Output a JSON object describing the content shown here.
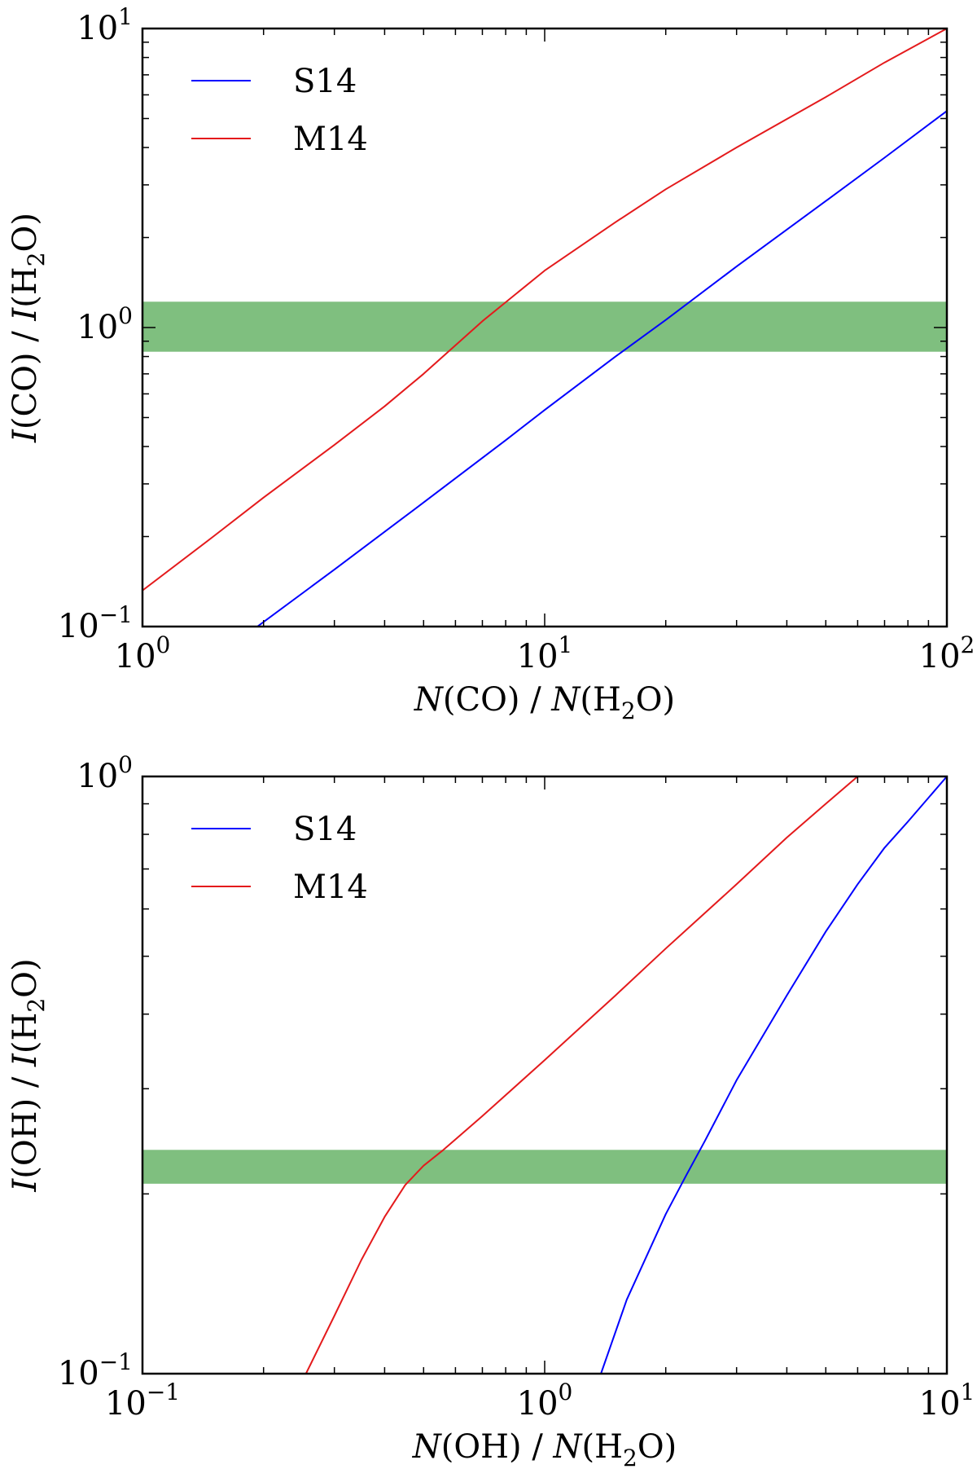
{
  "colors": {
    "S14": "#0000ff",
    "M14": "#e41a1c",
    "band": "#7fbf7f",
    "axes": "#000000"
  },
  "chart_data": [
    {
      "type": "line",
      "xscale": "log",
      "yscale": "log",
      "xlim": [
        1,
        100
      ],
      "ylim": [
        0.1,
        10
      ],
      "xlabel": {
        "pre": "N",
        "mid1": "(CO) / ",
        "italic2": "N",
        "mid2": "(H",
        "sub": "2",
        "post": "O)"
      },
      "ylabel": {
        "pre": "I",
        "mid1": "(CO) / ",
        "italic2": "I",
        "mid2": "(H",
        "sub": "2",
        "post": "O)"
      },
      "xticks": [
        {
          "value": 1,
          "base": "10",
          "exp": "0"
        },
        {
          "value": 10,
          "base": "10",
          "exp": "1"
        },
        {
          "value": 100,
          "base": "10",
          "exp": "2"
        }
      ],
      "yticks": [
        {
          "value": 0.1,
          "base": "10",
          "exp": "−1"
        },
        {
          "value": 1,
          "base": "10",
          "exp": "0"
        },
        {
          "value": 10,
          "base": "10",
          "exp": "1"
        }
      ],
      "band": {
        "y0": 0.83,
        "y1": 1.22
      },
      "legend": {
        "position": "upper-left",
        "entries": [
          "S14",
          "M14"
        ]
      },
      "series": [
        {
          "name": "S14",
          "x": [
            1.93,
            3,
            5,
            8,
            10,
            15,
            20,
            30,
            50,
            70,
            100
          ],
          "y": [
            0.1,
            0.155,
            0.26,
            0.42,
            0.53,
            0.8,
            1.06,
            1.6,
            2.65,
            3.7,
            5.3
          ]
        },
        {
          "name": "M14",
          "x": [
            1,
            1.5,
            2,
            3,
            4,
            5,
            7,
            10,
            15,
            20,
            30,
            50,
            70,
            100
          ],
          "y": [
            0.132,
            0.2,
            0.27,
            0.405,
            0.545,
            0.7,
            1.05,
            1.55,
            2.25,
            2.9,
            4.0,
            5.9,
            7.7,
            10.0
          ]
        }
      ]
    },
    {
      "type": "line",
      "xscale": "log",
      "yscale": "log",
      "xlim": [
        0.1,
        10
      ],
      "ylim": [
        0.1,
        1
      ],
      "xlabel": {
        "pre": "N",
        "mid1": "(OH) / ",
        "italic2": "N",
        "mid2": "(H",
        "sub": "2",
        "post": "O)"
      },
      "ylabel": {
        "pre": "I",
        "mid1": "(OH) / ",
        "italic2": "I",
        "mid2": "(H",
        "sub": "2",
        "post": "O)"
      },
      "xticks": [
        {
          "value": 0.1,
          "base": "10",
          "exp": "−1"
        },
        {
          "value": 1,
          "base": "10",
          "exp": "0"
        },
        {
          "value": 10,
          "base": "10",
          "exp": "1"
        }
      ],
      "yticks": [
        {
          "value": 0.1,
          "base": "10",
          "exp": "−1"
        },
        {
          "value": 1,
          "base": "10",
          "exp": "0"
        }
      ],
      "band": {
        "y0": 0.208,
        "y1": 0.237
      },
      "legend": {
        "position": "upper-left",
        "entries": [
          "S14",
          "M14"
        ]
      },
      "series": [
        {
          "name": "S14",
          "x": [
            1.38,
            1.6,
            2.0,
            2.25,
            2.5,
            3.0,
            4.0,
            5.0,
            6.0,
            7.0,
            8.0,
            10.0
          ],
          "y": [
            0.1,
            0.133,
            0.185,
            0.215,
            0.245,
            0.31,
            0.43,
            0.55,
            0.66,
            0.76,
            0.84,
            1.0
          ]
        },
        {
          "name": "M14",
          "x": [
            0.255,
            0.3,
            0.35,
            0.4,
            0.45,
            0.5,
            0.56,
            0.7,
            1.0,
            1.5,
            2.0,
            3.0,
            4.0,
            5.0,
            6.0
          ],
          "y": [
            0.1,
            0.125,
            0.155,
            0.183,
            0.207,
            0.223,
            0.237,
            0.27,
            0.335,
            0.43,
            0.515,
            0.66,
            0.79,
            0.9,
            1.0
          ]
        }
      ]
    }
  ]
}
